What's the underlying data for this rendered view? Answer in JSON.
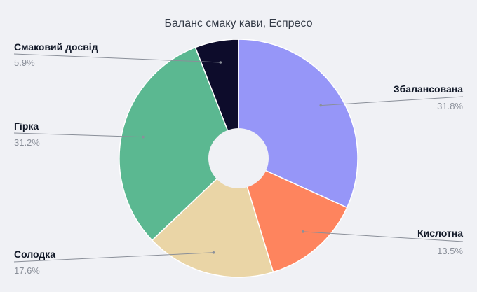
{
  "chart_data": {
    "type": "pie",
    "title": "Баланс смаку кави, Еспресо",
    "slices": [
      {
        "name": "Збалансована",
        "value": 31.8,
        "label": "31.8%",
        "color": "#9696f8"
      },
      {
        "name": "Кислотна",
        "value": 13.5,
        "label": "13.5%",
        "color": "#fe845e"
      },
      {
        "name": "Солодка",
        "value": 17.6,
        "label": "17.6%",
        "color": "#ead5a6"
      },
      {
        "name": "Гірка",
        "value": 31.2,
        "label": "31.2%",
        "color": "#5bb891"
      },
      {
        "name": "Смаковий досвід",
        "value": 5.9,
        "label": "5.9%",
        "color": "#0d0c2b"
      }
    ],
    "donut": true,
    "legend": "none",
    "labels": "outside-with-leader-lines"
  }
}
